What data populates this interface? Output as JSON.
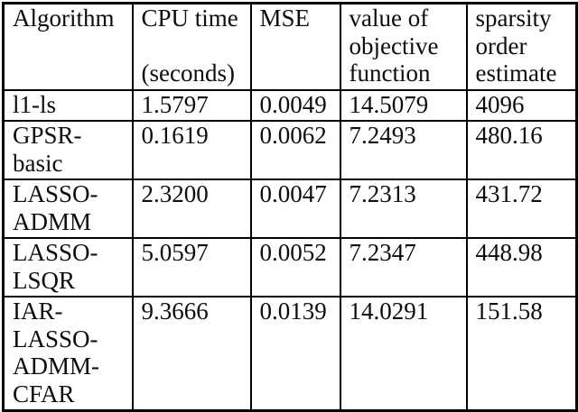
{
  "table": {
    "headers": [
      "Algorithm",
      "CPU time\n\n(seconds)",
      "MSE",
      "value of\nobjective\nfunction",
      "sparsity\norder\nestimate"
    ],
    "rows": [
      {
        "algorithm": "l1-ls",
        "cpu_time_seconds": "1.5797",
        "mse": "0.0049",
        "objective_value": "14.5079",
        "sparsity_order_estimate": "4096"
      },
      {
        "algorithm": "GPSR-\nbasic",
        "cpu_time_seconds": "0.1619",
        "mse": "0.0062",
        "objective_value": "7.2493",
        "sparsity_order_estimate": "480.16"
      },
      {
        "algorithm": "LASSO-\nADMM",
        "cpu_time_seconds": "2.3200",
        "mse": "0.0047",
        "objective_value": "7.2313",
        "sparsity_order_estimate": "431.72"
      },
      {
        "algorithm": "LASSO-\nLSQR",
        "cpu_time_seconds": "5.0597",
        "mse": "0.0052",
        "objective_value": "7.2347",
        "sparsity_order_estimate": "448.98"
      },
      {
        "algorithm": "IAR-\nLASSO-\nADMM-\nCFAR",
        "cpu_time_seconds": "9.3666",
        "mse": "0.0139",
        "objective_value": "14.0291",
        "sparsity_order_estimate": "151.58"
      }
    ]
  },
  "colors": {
    "border": "#000000",
    "text": "#0d0d0d",
    "background": "#ffffff"
  }
}
